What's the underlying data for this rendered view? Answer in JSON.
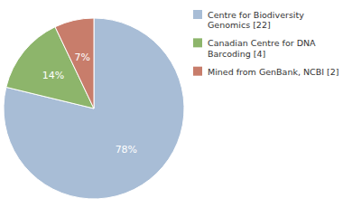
{
  "chart_data": {
    "type": "pie",
    "categories": [
      "Centre for Biodiversity\nGenomics [22]",
      "Canadian Centre for DNA\nBarcoding [4]",
      "Mined from GenBank, NCBI [2]"
    ],
    "values": [
      78,
      14,
      7
    ],
    "value_labels": [
      "78%",
      "14%",
      "7%"
    ],
    "colors": [
      "#a8bdd6",
      "#8db56b",
      "#c87d6b"
    ],
    "data_labels": true,
    "legend": "right"
  }
}
